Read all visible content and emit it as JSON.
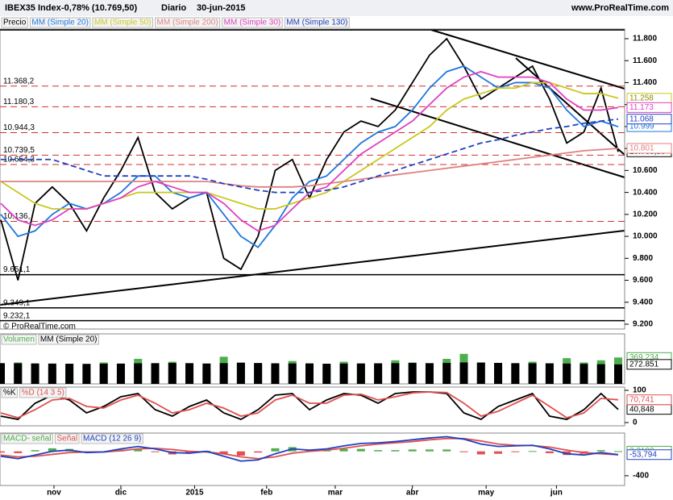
{
  "header": {
    "symbol": "IBEX35 Index",
    "change": "-0,78% (10.769,50)",
    "period": "Diario",
    "date": "30-jun-2015",
    "source": "www.ProRealTime.com"
  },
  "copyright": "© ProRealTime.com",
  "chart_data": [
    {
      "type": "line",
      "x": [
        0,
        1,
        2,
        3,
        4,
        5,
        6,
        7,
        8,
        9,
        10,
        11,
        12,
        13,
        14,
        15,
        16,
        17,
        18,
        19,
        20,
        21,
        22,
        23,
        24,
        25,
        26,
        27,
        28,
        29,
        30,
        31,
        32,
        33,
        34,
        35,
        36
      ],
      "xlim": [
        0,
        36
      ],
      "ylim": [
        9156,
        11888
      ],
      "yticks": [
        {
          "value": 9200,
          "label": "9.200"
        },
        {
          "value": 9400,
          "label": "9.400"
        },
        {
          "value": 9600,
          "label": "9.600"
        },
        {
          "value": 9800,
          "label": "9.800"
        },
        {
          "value": 10000,
          "label": "10.000"
        },
        {
          "value": 10200,
          "label": "10.200"
        },
        {
          "value": 10400,
          "label": "10.400"
        },
        {
          "value": 10600,
          "label": "10.600"
        },
        {
          "value": 10800,
          "label": "10.800"
        },
        {
          "value": 11000,
          "label": "11.000"
        },
        {
          "value": 11200,
          "label": "11.200"
        },
        {
          "value": 11400,
          "label": "11.400"
        },
        {
          "value": 11600,
          "label": "11.600"
        },
        {
          "value": 11800,
          "label": "11.800"
        }
      ],
      "levels": [
        {
          "value": 11880,
          "color": "#000000",
          "dashed": false
        },
        {
          "value": 11368.2,
          "label": "11.368,2",
          "color": "#d03030",
          "dashed": true
        },
        {
          "value": 11180.3,
          "label": "11.180,3",
          "color": "#d03030",
          "dashed": true
        },
        {
          "value": 10944.3,
          "label": "10.944,3",
          "color": "#d03030",
          "dashed": true
        },
        {
          "value": 10739.5,
          "label": "10.739,5",
          "color": "#d03030",
          "dashed": true
        },
        {
          "value": 10654.3,
          "label": "10.654,3",
          "color": "#d03030",
          "dashed": true
        },
        {
          "value": 10136,
          "label": "10.136,",
          "color": "#d03030",
          "dashed": true
        },
        {
          "value": 9651.1,
          "label": "9.651,1",
          "color": "#000000",
          "dashed": false
        },
        {
          "value": 9349.1,
          "label": "9.349,1",
          "color": "#000000",
          "dashed": false
        },
        {
          "value": 9232.1,
          "label": "9.232,1",
          "color": "#000000",
          "dashed": false
        }
      ],
      "series": [
        {
          "name": "Precio",
          "color": "#000000",
          "last_label": "10.769,50",
          "values": [
            10150,
            9600,
            10300,
            10450,
            10300,
            10050,
            10350,
            10600,
            10900,
            10400,
            10250,
            10350,
            10400,
            9800,
            9700,
            10000,
            10600,
            10700,
            10350,
            10700,
            10950,
            11050,
            11000,
            11150,
            11400,
            11650,
            11800,
            11550,
            11250,
            11350,
            11450,
            11550,
            11250,
            10850,
            10950,
            11350,
            10769.5
          ]
        },
        {
          "name": "MM (Simple 20)",
          "color": "#1f77e0",
          "last_label": "10.999",
          "values": [
            10200,
            10000,
            10050,
            10200,
            10300,
            10250,
            10300,
            10400,
            10550,
            10550,
            10400,
            10350,
            10400,
            10200,
            10000,
            9900,
            10100,
            10350,
            10500,
            10550,
            10700,
            10850,
            10950,
            11000,
            11150,
            11350,
            11500,
            11550,
            11450,
            11350,
            11400,
            11400,
            11350,
            11150,
            11000,
            11050,
            10999
          ]
        },
        {
          "name": "MM (Simple 50)",
          "color": "#c8c820",
          "last_label": "11.258",
          "values": [
            10500,
            10400,
            10300,
            10250,
            10250,
            10250,
            10300,
            10350,
            10400,
            10400,
            10400,
            10400,
            10400,
            10350,
            10300,
            10250,
            10250,
            10300,
            10350,
            10400,
            10500,
            10600,
            10700,
            10800,
            10900,
            11000,
            11150,
            11250,
            11300,
            11350,
            11350,
            11400,
            11400,
            11350,
            11300,
            11300,
            11258
          ]
        },
        {
          "name": "MM (Simple 200)",
          "color": "#e08080",
          "last_label": "10.801",
          "values": [
            10500,
            10500,
            10500,
            10500,
            10500,
            10500,
            10500,
            10500,
            10500,
            10500,
            10500,
            10500,
            10500,
            10480,
            10460,
            10450,
            10450,
            10450,
            10460,
            10480,
            10500,
            10520,
            10540,
            10560,
            10580,
            10600,
            10620,
            10640,
            10660,
            10680,
            10700,
            10720,
            10740,
            10760,
            10780,
            10790,
            10801
          ]
        },
        {
          "name": "MM (Simple 30)",
          "color": "#e040c0",
          "last_label": "11.173",
          "values": [
            10300,
            10150,
            10100,
            10150,
            10250,
            10250,
            10300,
            10350,
            10450,
            10500,
            10450,
            10400,
            10400,
            10300,
            10150,
            10050,
            10100,
            10250,
            10400,
            10450,
            10600,
            10750,
            10850,
            10950,
            11050,
            11200,
            11350,
            11450,
            11500,
            11450,
            11450,
            11450,
            11400,
            11250,
            11150,
            11150,
            11173
          ]
        },
        {
          "name": "MM (Simple 130)",
          "color": "#2040c0",
          "dashed": true,
          "last_label": "11.068",
          "values": [
            10700,
            10700,
            10700,
            10700,
            10650,
            10600,
            10550,
            10550,
            10550,
            10550,
            10550,
            10550,
            10520,
            10480,
            10450,
            10420,
            10400,
            10400,
            10400,
            10420,
            10450,
            10500,
            10550,
            10600,
            10650,
            10700,
            10750,
            10800,
            10850,
            10880,
            10920,
            10950,
            10980,
            11000,
            11030,
            11050,
            11068
          ]
        }
      ]
    },
    {
      "type": "bar",
      "ylim": [
        0,
        700000
      ],
      "series": [
        {
          "name": "Volumen",
          "color": "#4cae4c",
          "mark": "bar",
          "last_label": "369.234",
          "values": [
            250000,
            300000,
            280000,
            220000,
            260000,
            240000,
            300000,
            270000,
            350000,
            280000,
            310000,
            260000,
            200000,
            380000,
            300000,
            280000,
            250000,
            320000,
            290000,
            240000,
            310000,
            280000,
            260000,
            330000,
            300000,
            270000,
            350000,
            420000,
            300000,
            260000,
            280000,
            310000,
            290000,
            360000,
            300000,
            330000,
            369234
          ]
        },
        {
          "name": "MM (Simple 20)",
          "color": "#000000",
          "last_label": "272.851",
          "values": [
            290000,
            288000,
            286000,
            284000,
            282000,
            280000,
            282000,
            284000,
            288000,
            290000,
            292000,
            290000,
            285000,
            290000,
            295000,
            292000,
            288000,
            286000,
            284000,
            282000,
            284000,
            286000,
            288000,
            290000,
            292000,
            290000,
            294000,
            300000,
            298000,
            294000,
            290000,
            288000,
            286000,
            284000,
            280000,
            276000,
            272851
          ]
        }
      ]
    },
    {
      "type": "line",
      "ylim": [
        -10,
        110
      ],
      "yticks": [
        0,
        100
      ],
      "series": [
        {
          "name": "%K",
          "color": "#000000",
          "last_label": "40,848",
          "values": [
            20,
            10,
            60,
            85,
            70,
            30,
            50,
            80,
            90,
            40,
            20,
            50,
            70,
            30,
            10,
            40,
            85,
            90,
            40,
            70,
            90,
            85,
            60,
            90,
            95,
            95,
            90,
            30,
            10,
            50,
            70,
            90,
            20,
            10,
            40,
            90,
            40.848
          ]
        },
        {
          "name": "%D (14 3 5)",
          "color": "#e05050",
          "last_label": "70,741",
          "values": [
            30,
            15,
            40,
            70,
            75,
            50,
            45,
            70,
            85,
            60,
            30,
            40,
            60,
            45,
            20,
            30,
            70,
            85,
            60,
            60,
            85,
            88,
            70,
            80,
            92,
            95,
            93,
            60,
            20,
            35,
            60,
            85,
            50,
            15,
            30,
            75,
            70.741
          ]
        }
      ]
    },
    {
      "type": "bar",
      "ylim": [
        -560,
        300
      ],
      "yticks": [
        -400
      ],
      "xticks": [
        {
          "value": 3.1,
          "label": "nov"
        },
        {
          "value": 7.0,
          "label": "dic"
        },
        {
          "value": 11.3,
          "label": "2015"
        },
        {
          "value": 15.5,
          "label": "feb"
        },
        {
          "value": 19.5,
          "label": "mar"
        },
        {
          "value": 24.0,
          "label": "abr"
        },
        {
          "value": 28.3,
          "label": "may"
        },
        {
          "value": 32.4,
          "label": "jun"
        }
      ],
      "series": [
        {
          "name": "MACD- señal",
          "color": "#4cae4c",
          "color_negative": "#e05050",
          "mark": "bar",
          "last_label": "3,3193",
          "values": [
            -20,
            -30,
            20,
            50,
            40,
            -10,
            0,
            30,
            40,
            -10,
            -50,
            -30,
            10,
            -40,
            -70,
            -20,
            50,
            70,
            20,
            20,
            40,
            40,
            20,
            20,
            30,
            30,
            30,
            -10,
            -50,
            -40,
            -10,
            5,
            -30,
            -60,
            -40,
            20,
            3.3193
          ]
        },
        {
          "name": "Señal",
          "color": "#e05050",
          "mark": "line",
          "values": [
            -60,
            -90,
            -80,
            -50,
            -20,
            -10,
            -10,
            10,
            40,
            50,
            30,
            0,
            -10,
            -40,
            -90,
            -120,
            -90,
            -30,
            0,
            20,
            50,
            90,
            120,
            140,
            160,
            190,
            210,
            210,
            170,
            120,
            100,
            95,
            70,
            20,
            -20,
            -40,
            -57.1123
          ]
        },
        {
          "name": "MACD (12 26 9)",
          "color": "#2040c0",
          "mark": "line",
          "last_label": "-53,794",
          "values": [
            -80,
            -120,
            -60,
            0,
            20,
            -20,
            -10,
            40,
            80,
            40,
            -20,
            -30,
            0,
            -80,
            -160,
            -140,
            -40,
            40,
            20,
            40,
            90,
            130,
            140,
            160,
            190,
            220,
            240,
            200,
            120,
            80,
            90,
            100,
            40,
            -40,
            -60,
            -20,
            -53.794
          ]
        }
      ]
    }
  ]
}
